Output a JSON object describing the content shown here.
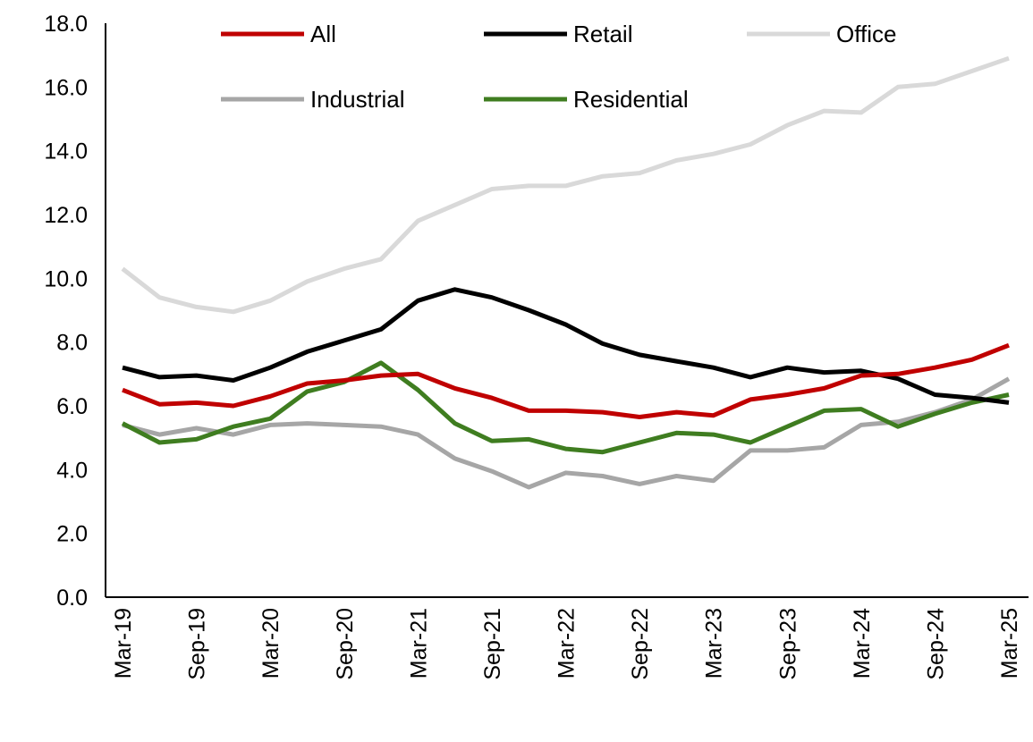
{
  "chart_data": {
    "type": "line",
    "title": "",
    "xlabel": "",
    "ylabel": "",
    "ylim": [
      0,
      18
    ],
    "yticks": [
      "0.0",
      "2.0",
      "4.0",
      "6.0",
      "8.0",
      "10.0",
      "12.0",
      "14.0",
      "16.0",
      "18.0"
    ],
    "grid": false,
    "legend_position": "top",
    "x": [
      "Mar-19",
      "Jun-19",
      "Sep-19",
      "Dec-19",
      "Mar-20",
      "Jun-20",
      "Sep-20",
      "Dec-20",
      "Mar-21",
      "Jun-21",
      "Sep-21",
      "Dec-21",
      "Mar-22",
      "Jun-22",
      "Sep-22",
      "Dec-22",
      "Mar-23",
      "Jun-23",
      "Sep-23",
      "Dec-23",
      "Mar-24",
      "Jun-24",
      "Sep-24",
      "Dec-24",
      "Mar-25"
    ],
    "xtick_labels": [
      "Mar-19",
      "Sep-19",
      "Mar-20",
      "Sep-20",
      "Mar-21",
      "Sep-21",
      "Mar-22",
      "Sep-22",
      "Mar-23",
      "Sep-23",
      "Mar-24",
      "Sep-24",
      "Mar-25"
    ],
    "series": [
      {
        "name": "All",
        "color": "#c00000",
        "values": [
          6.5,
          6.05,
          6.1,
          6.0,
          6.3,
          6.7,
          6.8,
          6.95,
          7.0,
          6.55,
          6.25,
          5.85,
          5.85,
          5.8,
          5.65,
          5.8,
          5.7,
          6.2,
          6.35,
          6.55,
          6.95,
          7.0,
          7.2,
          7.45,
          7.9
        ]
      },
      {
        "name": "Retail",
        "color": "#000000",
        "values": [
          7.2,
          6.9,
          6.95,
          6.8,
          7.2,
          7.7,
          8.05,
          8.4,
          9.3,
          9.65,
          9.4,
          9.0,
          8.55,
          7.95,
          7.6,
          7.4,
          7.2,
          6.9,
          7.2,
          7.05,
          7.1,
          6.85,
          6.35,
          6.25,
          6.1
        ]
      },
      {
        "name": "Office",
        "color": "#d9d9d9",
        "values": [
          10.3,
          9.4,
          9.1,
          8.95,
          9.3,
          9.9,
          10.3,
          10.6,
          11.8,
          12.3,
          12.8,
          12.9,
          12.9,
          13.2,
          13.3,
          13.7,
          13.9,
          14.2,
          14.8,
          15.25,
          15.2,
          16.0,
          16.1,
          16.5,
          16.9
        ]
      },
      {
        "name": "Industrial",
        "color": "#a6a6a6",
        "values": [
          5.4,
          5.1,
          5.3,
          5.1,
          5.4,
          5.45,
          5.4,
          5.35,
          5.1,
          4.35,
          3.95,
          3.45,
          3.9,
          3.8,
          3.55,
          3.8,
          3.65,
          4.6,
          4.6,
          4.7,
          5.4,
          5.5,
          5.8,
          6.2,
          6.85
        ]
      },
      {
        "name": "Residential",
        "color": "#3f7d20",
        "values": [
          5.45,
          4.85,
          4.95,
          5.35,
          5.6,
          6.45,
          6.75,
          7.35,
          6.5,
          5.45,
          4.9,
          4.95,
          4.65,
          4.55,
          4.85,
          5.15,
          5.1,
          4.85,
          5.35,
          5.85,
          5.9,
          5.35,
          5.75,
          6.1,
          6.35
        ]
      }
    ]
  }
}
